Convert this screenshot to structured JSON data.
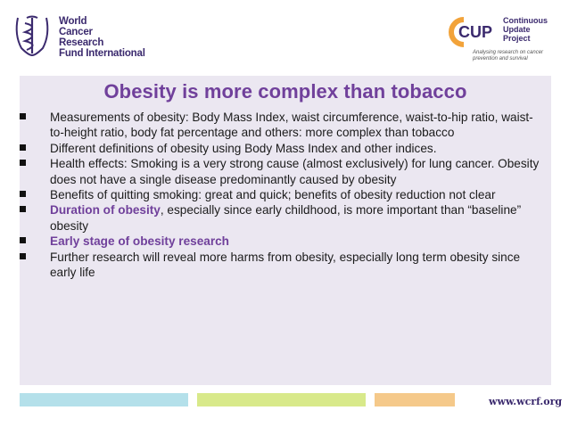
{
  "wcrf_logo": {
    "lines": [
      "World",
      "Cancer",
      "Research",
      "Fund International"
    ]
  },
  "cup_logo": {
    "abbr": "CUP",
    "lines": [
      "Continuous",
      "Update",
      "Project"
    ],
    "tagline": [
      "Analysing research on cancer",
      "prevention and survival"
    ]
  },
  "slide": {
    "title": "Obesity is more complex than tobacco",
    "bullets": [
      {
        "text": "Measurements of obesity: Body Mass Index, waist circumference, waist-to-hip ratio, waist-to-height ratio, body fat percentage and others: more complex than tobacco"
      },
      {
        "text": "Different definitions of obesity using Body Mass Index and other indices."
      },
      {
        "text": "Health effects: Smoking is a very strong cause (almost exclusively) for lung cancer. Obesity does not have a single disease predominantly caused by obesity"
      },
      {
        "text": "Benefits of quitting smoking: great and quick; benefits of obesity reduction not clear"
      },
      {
        "highlight": "Duration of obesity",
        "rest": ", especially since early childhood, is more important than “baseline” obesity"
      },
      {
        "highlight": "Early stage of obesity research"
      },
      {
        "text": "Further research will reveal more harms from obesity, especially long term obesity since early life"
      }
    ]
  },
  "footer": {
    "website": "www.wcrf.org"
  },
  "colors": {
    "accent": "#70409b",
    "panel": "#ebe7f1",
    "bar_blue": "#b4e0ea",
    "bar_green": "#d8e98a",
    "bar_orange": "#f5c98a"
  }
}
